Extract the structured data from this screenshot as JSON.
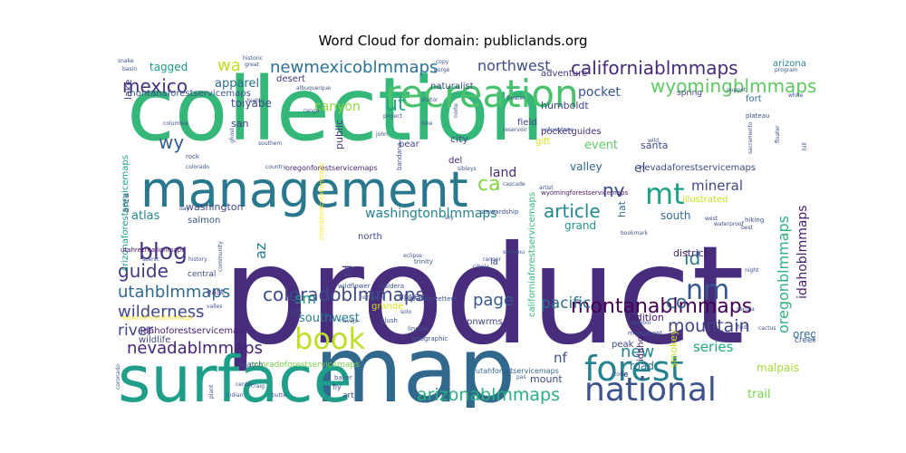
{
  "chart_data": {
    "type": "wordcloud",
    "title": "Word Cloud for domain: publiclands.org",
    "background": "#ffffff",
    "palette": "viridis",
    "words": [
      {
        "text": "product",
        "weight": 1.0,
        "color": "#472d7b"
      },
      {
        "text": "collection",
        "weight": 0.72,
        "color": "#35b779"
      },
      {
        "text": "map",
        "weight": 0.7,
        "color": "#31688e"
      },
      {
        "text": "surface",
        "weight": 0.55,
        "color": "#1f9e89"
      },
      {
        "text": "management",
        "weight": 0.38,
        "color": "#2a788e"
      },
      {
        "text": "recreation",
        "weight": 0.3,
        "color": "#4ac16d"
      },
      {
        "text": "forest",
        "weight": 0.27,
        "color": "#26828e"
      },
      {
        "text": "national",
        "weight": 0.27,
        "color": "#3b528b"
      },
      {
        "text": "book",
        "weight": 0.24,
        "color": "#bddf26"
      },
      {
        "text": "mt",
        "weight": 0.22,
        "color": "#1fa187"
      },
      {
        "text": "nm",
        "weight": 0.22,
        "color": "#39568c"
      },
      {
        "text": "blog",
        "weight": 0.18,
        "color": "#453781"
      },
      {
        "text": "californiablmmaps",
        "weight": 0.14,
        "color": "#482878"
      },
      {
        "text": "wyomingblmmaps",
        "weight": 0.14,
        "color": "#5ec962"
      },
      {
        "text": "newmexicoblmmaps",
        "weight": 0.13,
        "color": "#2c728e"
      },
      {
        "text": "montanablmmaps",
        "weight": 0.14,
        "color": "#440154"
      },
      {
        "text": "coloradoblmmaps",
        "weight": 0.13,
        "color": "#3e4989"
      },
      {
        "text": "arizonablmmaps",
        "weight": 0.13,
        "color": "#29af7f"
      },
      {
        "text": "nevadablmmaps",
        "weight": 0.12,
        "color": "#482475"
      },
      {
        "text": "utahblmmaps",
        "weight": 0.12,
        "color": "#306a8e"
      },
      {
        "text": "oregonblmmaps",
        "weight": 0.12,
        "color": "#2db27d"
      },
      {
        "text": "wilderness",
        "weight": 0.12,
        "color": "#3f4788"
      },
      {
        "text": "mountain",
        "weight": 0.12,
        "color": "#414487"
      },
      {
        "text": "article",
        "weight": 0.11,
        "color": "#23898e"
      },
      {
        "text": "mexico",
        "weight": 0.11,
        "color": "#46307e"
      },
      {
        "text": "guide",
        "weight": 0.11,
        "color": "#443a83"
      },
      {
        "text": "ca",
        "weight": 0.12,
        "color": "#84d44b"
      },
      {
        "text": "wy",
        "weight": 0.11,
        "color": "#365c8d"
      },
      {
        "text": "ut",
        "weight": 0.11,
        "color": "#22a884"
      },
      {
        "text": "co",
        "weight": 0.11,
        "color": "#33638d"
      },
      {
        "text": "id",
        "weight": 0.11,
        "color": "#2a768e"
      },
      {
        "text": "nv",
        "weight": 0.11,
        "color": "#3b518b"
      },
      {
        "text": "wa",
        "weight": 0.1,
        "color": "#c2df23"
      },
      {
        "text": "page",
        "weight": 0.1,
        "color": "#38588c"
      },
      {
        "text": "pacific",
        "weight": 0.09,
        "color": "#2d708e"
      },
      {
        "text": "new",
        "weight": 0.1,
        "color": "#25858e"
      },
      {
        "text": "river",
        "weight": 0.09,
        "color": "#404588"
      },
      {
        "text": "northwest",
        "weight": 0.09,
        "color": "#3d4d8a"
      },
      {
        "text": "washingtonblmmaps",
        "weight": 0.08,
        "color": "#26818e"
      },
      {
        "text": "idahoblmmaps",
        "weight": 0.08,
        "color": "#481b6d"
      },
      {
        "text": "mineral",
        "weight": 0.08,
        "color": "#404688"
      },
      {
        "text": "az",
        "weight": 0.08,
        "color": "#287c8e"
      },
      {
        "text": "sm",
        "weight": 0.08,
        "color": "#1f958b"
      },
      {
        "text": "series",
        "weight": 0.07,
        "color": "#22a785"
      },
      {
        "text": "tagged",
        "weight": 0.06,
        "color": "#1f9a8a"
      },
      {
        "text": "apparel",
        "weight": 0.06,
        "color": "#2e6f8e"
      },
      {
        "text": "canyon",
        "weight": 0.06,
        "color": "#8fd744"
      },
      {
        "text": "pocket",
        "weight": 0.06,
        "color": "#3a538b"
      },
      {
        "text": "event",
        "weight": 0.06,
        "color": "#5cc863"
      },
      {
        "text": "land",
        "weight": 0.06,
        "color": "#472c7a"
      },
      {
        "text": "valley",
        "weight": 0.05,
        "color": "#31688e"
      },
      {
        "text": "atlas",
        "weight": 0.05,
        "color": "#24878e"
      },
      {
        "text": "south",
        "weight": 0.05,
        "color": "#2f6c8e"
      },
      {
        "text": "grand",
        "weight": 0.05,
        "color": "#1f948c"
      },
      {
        "text": "oregon",
        "weight": 0.05,
        "color": "#2e6e8e"
      },
      {
        "text": "nf",
        "weight": 0.06,
        "color": "#3c4f8a"
      },
      {
        "text": "road",
        "weight": 0.05,
        "color": "#2b758e"
      },
      {
        "text": "trail",
        "weight": 0.05,
        "color": "#7ad151"
      },
      {
        "text": "southwest",
        "weight": 0.05,
        "color": "#27808e"
      },
      {
        "text": "mount",
        "weight": 0.04,
        "color": "#3e4a89"
      },
      {
        "text": "edition",
        "weight": 0.04,
        "color": "#48186a"
      },
      {
        "text": "rd",
        "weight": 0.05,
        "color": "#414287"
      },
      {
        "text": "lake",
        "weight": 0.04,
        "color": "#3f4889"
      },
      {
        "text": "area",
        "weight": 0.04,
        "color": "#3d4e8a"
      },
      {
        "text": "public",
        "weight": 0.04,
        "color": "#453882"
      },
      {
        "text": "district",
        "weight": 0.04,
        "color": "#481c6e"
      },
      {
        "text": "el",
        "weight": 0.05,
        "color": "#3b528b"
      },
      {
        "text": "hat",
        "weight": 0.04,
        "color": "#2c738e"
      },
      {
        "text": "idaho",
        "weight": 0.04,
        "color": "#471365"
      },
      {
        "text": "smokey",
        "weight": 0.04,
        "color": "#c8e020"
      },
      {
        "text": "malpais",
        "weight": 0.04,
        "color": "#a5db36"
      },
      {
        "text": "montanaforestservicemaps",
        "weight": 0.035,
        "color": "#3b528b"
      },
      {
        "text": "idahoforestservicemaps",
        "weight": 0.035,
        "color": "#482173"
      },
      {
        "text": "nevadaforestservicemaps",
        "weight": 0.035,
        "color": "#3e4c8a"
      },
      {
        "text": "californiaforestservicemaps",
        "weight": 0.035,
        "color": "#35b779"
      },
      {
        "text": "arizonaforestservicemaps",
        "weight": 0.035,
        "color": "#1f9e89"
      },
      {
        "text": "coloradoforestservicemaps",
        "weight": 0.03,
        "color": "#7ad151"
      },
      {
        "text": "oregonforestservicemaps",
        "weight": 0.025,
        "color": "#482576"
      },
      {
        "text": "wyomingforestservicemaps",
        "weight": 0.025,
        "color": "#48186a"
      },
      {
        "text": "utahforestservicemaps",
        "weight": 0.025,
        "color": "#31688e"
      },
      {
        "text": "utahrecreationmaps",
        "weight": 0.025,
        "color": "#471063"
      },
      {
        "text": "coloradorecreationmaps",
        "weight": 0.02,
        "color": "#fde725"
      },
      {
        "text": "mexicorecreationmaps",
        "weight": 0.02,
        "color": "#fde725"
      },
      {
        "text": "pocketguides",
        "weight": 0.03,
        "color": "#472d7b"
      },
      {
        "text": "humboldt",
        "weight": 0.03,
        "color": "#3f4889"
      },
      {
        "text": "adventure",
        "weight": 0.03,
        "color": "#46337f"
      },
      {
        "text": "naturalist",
        "weight": 0.03,
        "color": "#3e4a89"
      },
      {
        "text": "toiyabe",
        "weight": 0.03,
        "color": "#3e4a89"
      },
      {
        "text": "desert",
        "weight": 0.025,
        "color": "#453781"
      },
      {
        "text": "arizona",
        "weight": 0.03,
        "color": "#25838e"
      },
      {
        "text": "fort",
        "weight": 0.03,
        "color": "#2c728e"
      },
      {
        "text": "spring",
        "weight": 0.025,
        "color": "#3f4889"
      },
      {
        "text": "san",
        "weight": 0.03,
        "color": "#443b84"
      },
      {
        "text": "santa",
        "weight": 0.03,
        "color": "#3e4989"
      },
      {
        "text": "city",
        "weight": 0.03,
        "color": "#3b528b"
      },
      {
        "text": "field",
        "weight": 0.025,
        "color": "#404588"
      },
      {
        "text": "gift",
        "weight": 0.03,
        "color": "#d2e21b"
      },
      {
        "text": "bear",
        "weight": 0.025,
        "color": "#3f4889"
      },
      {
        "text": "del",
        "weight": 0.025,
        "color": "#482878"
      },
      {
        "text": "washington",
        "weight": 0.025,
        "color": "#3f4889"
      },
      {
        "text": "salmon",
        "weight": 0.025,
        "color": "#3b528b"
      },
      {
        "text": "north",
        "weight": 0.025,
        "color": "#3e4989"
      },
      {
        "text": "central",
        "weight": 0.02,
        "color": "#3e4a89"
      },
      {
        "text": "east",
        "weight": 0.02,
        "color": "#443a83"
      },
      {
        "text": "rio",
        "weight": 0.025,
        "color": "#3f4889"
      },
      {
        "text": "grande",
        "weight": 0.025,
        "color": "#d8e219"
      },
      {
        "text": "park",
        "weight": 0.02,
        "color": "#3f4889"
      },
      {
        "text": "upper",
        "weight": 0.02,
        "color": "#3e4c8a"
      },
      {
        "text": "pnwrms",
        "weight": 0.025,
        "color": "#404588"
      },
      {
        "text": "illustrated",
        "weight": 0.025,
        "color": "#c8e020"
      },
      {
        "text": "wildlife",
        "weight": 0.02,
        "color": "#3f4889"
      },
      {
        "text": "creek",
        "weight": 0.02,
        "color": "#3b528b"
      },
      {
        "text": "peak",
        "weight": 0.02,
        "color": "#3f4889"
      },
      {
        "text": "fe",
        "weight": 0.02,
        "color": "#3b528b"
      },
      {
        "text": "la",
        "weight": 0.02,
        "color": "#3e4989"
      },
      {
        "text": "stewardship",
        "weight": 0.015,
        "color": "#3b528b"
      },
      {
        "text": "wildflower",
        "weight": 0.015,
        "color": "#3b528b"
      },
      {
        "text": "caldera",
        "weight": 0.015,
        "color": "#3b528b"
      },
      {
        "text": "trinity",
        "weight": 0.015,
        "color": "#3b528b"
      },
      {
        "text": "gazetteer",
        "weight": 0.015,
        "color": "#3b528b"
      },
      {
        "text": "geographic",
        "weight": 0.015,
        "color": "#3b528b"
      },
      {
        "text": "lincoln",
        "weight": 0.015,
        "color": "#3b528b"
      },
      {
        "text": "plush",
        "weight": 0.015,
        "color": "#3b528b"
      },
      {
        "text": "solo",
        "weight": 0.012,
        "color": "#3b528b"
      },
      {
        "text": "monument",
        "weight": 0.015,
        "color": "#3b528b"
      },
      {
        "text": "baker",
        "weight": 0.015,
        "color": "#3b528b"
      },
      {
        "text": "craig",
        "weight": 0.012,
        "color": "#3b528b"
      },
      {
        "text": "butte",
        "weight": 0.012,
        "color": "#3b528b"
      },
      {
        "text": "indian",
        "weight": 0.012,
        "color": "#3b528b"
      },
      {
        "text": "art",
        "weight": 0.02,
        "color": "#3b528b"
      },
      {
        "text": "fly",
        "weight": 0.015,
        "color": "#3b528b"
      },
      {
        "text": "match",
        "weight": 0.015,
        "color": "#3b528b"
      },
      {
        "text": "navajo",
        "weight": 0.012,
        "color": "#3b528b"
      },
      {
        "text": "ranger",
        "weight": 0.012,
        "color": "#3b528b"
      },
      {
        "text": "cibola",
        "weight": 0.012,
        "color": "#3b528b"
      },
      {
        "text": "eclipse",
        "weight": 0.012,
        "color": "#3b528b"
      },
      {
        "text": "cascade",
        "weight": 0.012,
        "color": "#3b528b"
      },
      {
        "text": "siskiyou",
        "weight": 0.012,
        "color": "#3b528b"
      },
      {
        "text": "sky",
        "weight": 0.012,
        "color": "#3b528b"
      },
      {
        "text": "sibleys",
        "weight": 0.012,
        "color": "#3b528b"
      },
      {
        "text": "bandana",
        "weight": 0.015,
        "color": "#3b528b"
      },
      {
        "text": "reservoir",
        "weight": 0.012,
        "color": "#3b528b"
      },
      {
        "text": "hike",
        "weight": 0.012,
        "color": "#3b528b"
      },
      {
        "text": "project",
        "weight": 0.012,
        "color": "#3b528b"
      },
      {
        "text": "john",
        "weight": 0.012,
        "color": "#3b528b"
      },
      {
        "text": "visitor",
        "weight": 0.012,
        "color": "#3b528b"
      },
      {
        "text": "boater",
        "weight": 0.012,
        "color": "#3b528b"
      },
      {
        "text": "artist",
        "weight": 0.012,
        "color": "#3b528b"
      },
      {
        "text": "bookmark",
        "weight": 0.012,
        "color": "#3b528b"
      },
      {
        "text": "yellowstone",
        "weight": 0.012,
        "color": "#3b528b"
      },
      {
        "text": "plateau",
        "weight": 0.012,
        "color": "#3b528b"
      },
      {
        "text": "wild",
        "weight": 0.012,
        "color": "#3b528b"
      },
      {
        "text": "hiking",
        "weight": 0.012,
        "color": "#3b528b"
      },
      {
        "text": "west",
        "weight": 0.012,
        "color": "#3b528b"
      },
      {
        "text": "night",
        "weight": 0.012,
        "color": "#3b528b"
      },
      {
        "text": "sandia",
        "weight": 0.012,
        "color": "#3b528b"
      },
      {
        "text": "cactus",
        "weight": 0.012,
        "color": "#3b528b"
      },
      {
        "text": "find",
        "weight": 0.012,
        "color": "#3b528b"
      },
      {
        "text": "town",
        "weight": 0.012,
        "color": "#3b528b"
      },
      {
        "text": "albuquerque",
        "weight": 0.012,
        "color": "#3b528b"
      },
      {
        "text": "range",
        "weight": 0.012,
        "color": "#3b528b"
      },
      {
        "text": "southern",
        "weight": 0.012,
        "color": "#3b528b"
      },
      {
        "text": "ghost",
        "weight": 0.012,
        "color": "#3b528b"
      },
      {
        "text": "columbia",
        "weight": 0.012,
        "color": "#3b528b"
      },
      {
        "text": "rock",
        "weight": 0.012,
        "color": "#3b528b"
      },
      {
        "text": "colorado",
        "weight": 0.012,
        "color": "#3b528b"
      },
      {
        "text": "country",
        "weight": 0.012,
        "color": "#3b528b"
      },
      {
        "text": "day",
        "weight": 0.012,
        "color": "#3b528b"
      },
      {
        "text": "community",
        "weight": 0.012,
        "color": "#3b528b"
      },
      {
        "text": "scenic",
        "weight": 0.012,
        "color": "#3b528b"
      },
      {
        "text": "history",
        "weight": 0.012,
        "color": "#3b528b"
      },
      {
        "text": "valles",
        "weight": 0.012,
        "color": "#3b528b"
      },
      {
        "text": "high",
        "weight": 0.012,
        "color": "#3b528b"
      },
      {
        "text": "historic",
        "weight": 0.012,
        "color": "#3b528b"
      },
      {
        "text": "great",
        "weight": 0.012,
        "color": "#3b528b"
      },
      {
        "text": "snake",
        "weight": 0.012,
        "color": "#3b528b"
      },
      {
        "text": "basin",
        "weight": 0.012,
        "color": "#3b528b"
      },
      {
        "text": "copy",
        "weight": 0.012,
        "color": "#3b528b"
      },
      {
        "text": "gorge",
        "weight": 0.012,
        "color": "#3b528b"
      },
      {
        "text": "puppet",
        "weight": 0.012,
        "color": "#3b528b"
      },
      {
        "text": "program",
        "weight": 0.012,
        "color": "#3b528b"
      },
      {
        "text": "white",
        "weight": 0.012,
        "color": "#3b528b"
      },
      {
        "text": "floater",
        "weight": 0.012,
        "color": "#3b528b"
      },
      {
        "text": "sacramento",
        "weight": 0.012,
        "color": "#3b528b"
      },
      {
        "text": "hill",
        "weight": 0.012,
        "color": "#3b528b"
      },
      {
        "text": "best",
        "weight": 0.012,
        "color": "#3b528b"
      },
      {
        "text": "waterproof",
        "weight": 0.012,
        "color": "#3b528b"
      },
      {
        "text": "pueblo",
        "weight": 0.012,
        "color": "#3b528b"
      },
      {
        "text": "center",
        "weight": 0.012,
        "color": "#3b528b"
      },
      {
        "text": "plant",
        "weight": 0.012,
        "color": "#3b528b"
      },
      {
        "text": "coronado",
        "weight": 0.012,
        "color": "#3b528b"
      },
      {
        "text": "pas",
        "weight": 0.012,
        "color": "#3b528b"
      },
      {
        "text": "norte",
        "weight": 0.012,
        "color": "#3b528b"
      },
      {
        "text": "northern",
        "weight": 0.012,
        "color": "#3b528b"
      }
    ]
  }
}
